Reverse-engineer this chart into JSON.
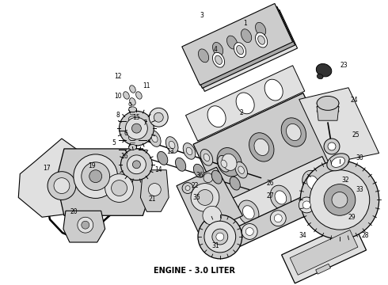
{
  "caption": "ENGINE - 3.0 LITER",
  "caption_fontsize": 7,
  "caption_fontweight": "bold",
  "fig_width": 4.9,
  "fig_height": 3.6,
  "dpi": 100,
  "bg_color": "#ffffff",
  "line_color": "#000000",
  "gray1": "#888888",
  "gray2": "#aaaaaa",
  "gray3": "#cccccc",
  "gray4": "#e0e0e0",
  "dark": "#333333"
}
